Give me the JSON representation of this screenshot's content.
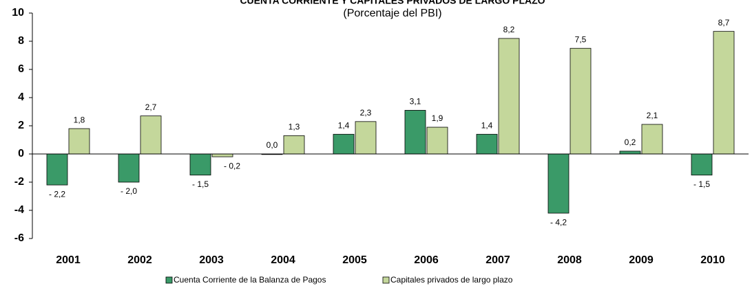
{
  "chart_data": {
    "type": "bar",
    "title": "CUENTA CORRIENTE Y CAPITALES PRIVADOS DE LARGO PLAZO",
    "subtitle": "(Porcentaje del PBI)",
    "categories": [
      "2001",
      "2002",
      "2003",
      "2004",
      "2005",
      "2006",
      "2007",
      "2008",
      "2009",
      "2010"
    ],
    "series": [
      {
        "name": "Cuenta Corriente de la Balanza de Pagos",
        "color": "#3a9a68",
        "values": [
          -2.2,
          -2.0,
          -1.5,
          0.0,
          1.4,
          3.1,
          1.4,
          -4.2,
          0.2,
          -1.5
        ],
        "value_labels": [
          "- 2,2",
          "- 2,0",
          "- 1,5",
          "0,0",
          "1,4",
          "3,1",
          "1,4",
          "- 4,2",
          "0,2",
          "- 1,5"
        ]
      },
      {
        "name": "Capitales privados de largo plazo",
        "color": "#c4d79b",
        "values": [
          1.8,
          2.7,
          -0.2,
          1.3,
          2.3,
          1.9,
          8.2,
          7.5,
          2.1,
          8.7
        ],
        "value_labels": [
          "1,8",
          "2,7",
          "- 0,2",
          "1,3",
          "2,3",
          "1,9",
          "8,2",
          "7,5",
          "2,1",
          "8,7"
        ]
      }
    ],
    "ylim": [
      -6,
      10
    ],
    "yticks": [
      -6,
      -4,
      -2,
      0,
      2,
      4,
      6,
      8,
      10
    ],
    "grid": false
  }
}
